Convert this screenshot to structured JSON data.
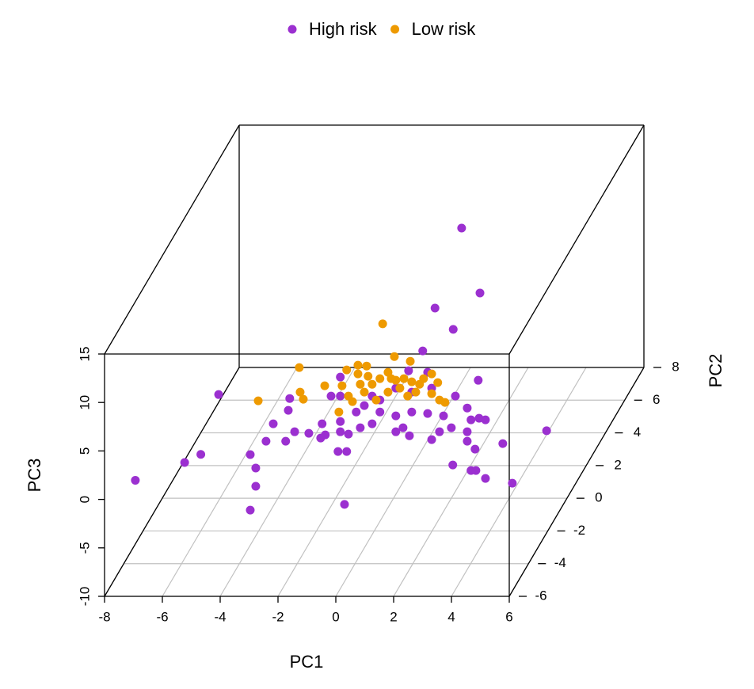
{
  "chart_data": {
    "type": "scatter3d",
    "xlabel": "PC1",
    "ylabel": "PC2",
    "zlabel": "PC3",
    "xlim": [
      -8,
      6
    ],
    "ylim": [
      -6,
      8
    ],
    "zlim": [
      -10,
      15
    ],
    "xticks": [
      -8,
      -6,
      -4,
      -2,
      0,
      2,
      4,
      6
    ],
    "yticks": [
      -6,
      -4,
      -2,
      0,
      2,
      4,
      6,
      8
    ],
    "zticks": [
      -10,
      -5,
      0,
      5,
      10,
      15
    ],
    "grid": true,
    "legend": "top",
    "series": [
      {
        "name": "High risk",
        "color": "#9b30d0",
        "x": [
          -7.6,
          -6.56,
          -6.0,
          -6.05,
          -4.29,
          -4.1,
          -4.1,
          -4.29,
          -1.03,
          -4.41,
          -4.16,
          -3.64,
          -3.59,
          -3.73,
          -3.42,
          -2.93,
          -2.47,
          -2.52,
          -2.36,
          -1.92,
          -1.62,
          -1.84,
          -1.56,
          -1.15,
          -0.74,
          -1.84,
          -2.16,
          -1.84,
          -1.84,
          -1.01,
          -0.47,
          0.08,
          0.63,
          1.18,
          1.73,
          0.08,
          0.55,
          1.32,
          1.59,
          2.0,
          2.14,
          2.55,
          2.68,
          2.96,
          3.18,
          2.55,
          2.55,
          2.82,
          2.05,
          2.68,
          2.85,
          3.18,
          3.78,
          4.11,
          4.63,
          2.93,
          1.01,
          0.77,
          1.4,
          1.66,
          0.36,
          0.52,
          1.18,
          0.08,
          -0.47,
          -1.29,
          -0.74,
          1.32,
          0.63,
          0.33
        ],
        "y": [
          -4,
          -2,
          -2,
          0,
          -2,
          -2,
          -2,
          -2,
          -2,
          0,
          0,
          0,
          0,
          0,
          0,
          0,
          0,
          0,
          0,
          0,
          0,
          0,
          0,
          0,
          0,
          0,
          0,
          0,
          0,
          0,
          0,
          0,
          0,
          0,
          0,
          0,
          0,
          0,
          0,
          0,
          0,
          0,
          0,
          0,
          0,
          0,
          0,
          0,
          0,
          0,
          0,
          0,
          0,
          0,
          2,
          0,
          0,
          2,
          2,
          4,
          6,
          0,
          0,
          0,
          0,
          0,
          0,
          0,
          0,
          0
        ],
        "z": [
          -1.4,
          -2.94,
          -2.1,
          0.7,
          -7.85,
          -5.39,
          -3.51,
          -2.12,
          -7.26,
          -4.12,
          -2.32,
          -0.93,
          0.29,
          -4.12,
          -3.14,
          -3.3,
          -2.32,
          -3.79,
          -3.46,
          -5.18,
          -5.18,
          -3.14,
          -3.38,
          -2.73,
          -2.32,
          -2.08,
          0.54,
          0.54,
          2.5,
          -0.44,
          -1.1,
          -1.5,
          -1.1,
          -1.26,
          -1.5,
          -3.14,
          -3.55,
          -3.95,
          -3.14,
          -2.73,
          0.54,
          -0.69,
          -1.91,
          -1.75,
          -1.91,
          -3.14,
          -4.12,
          -4.93,
          -6.57,
          -7.14,
          -7.14,
          -7.96,
          -4.36,
          -8.45,
          -6.41,
          2.17,
          5.2,
          6.25,
          4.05,
          4.43,
          7.75,
          3.15,
          2.99,
          1.36,
          0.13,
          -1.1,
          0.54,
          1.36,
          0.95,
          -2.73
        ]
      },
      {
        "name": "Low risk",
        "color": "#ee9a00",
        "x": [
          -1.04,
          -3.26,
          -4.68,
          -3.23,
          -3.12,
          -2.38,
          -1.78,
          -1.62,
          -1.23,
          -0.93,
          0.03,
          0.58,
          1.32,
          1.53,
          1.78,
          -1.42,
          -1.56,
          -1.01,
          -0.74,
          -0.47,
          -0.19,
          0.08,
          0.36,
          0.63,
          0.9,
          1.04,
          -0.19,
          0.22,
          0.49,
          0.77,
          -1.15,
          -0.88,
          -0.6,
          -1.23,
          1.32,
          1.59,
          -0.08,
          -1.89
        ],
        "y": [
          2,
          0,
          0,
          0,
          0,
          0,
          0,
          0,
          0,
          0,
          0,
          0,
          0,
          0,
          0,
          0,
          0,
          0,
          0,
          0,
          0,
          0,
          0,
          0,
          0,
          0,
          0,
          0,
          0,
          0,
          0,
          0,
          0,
          0,
          0,
          0,
          0,
          0
        ],
        "z": [
          4.62,
          3.48,
          0.05,
          0.95,
          0.21,
          1.6,
          1.6,
          3.24,
          3.73,
          3.64,
          4.62,
          4.13,
          2.83,
          1.93,
          -0.11,
          -0.03,
          0.54,
          0.95,
          1.76,
          2.34,
          2.99,
          2.17,
          2.34,
          2.01,
          1.76,
          2.34,
          0.95,
          1.36,
          0.54,
          0.95,
          1.76,
          2.58,
          0.13,
          2.83,
          0.79,
          0.13,
          2.34,
          -1.1
        ]
      }
    ]
  }
}
